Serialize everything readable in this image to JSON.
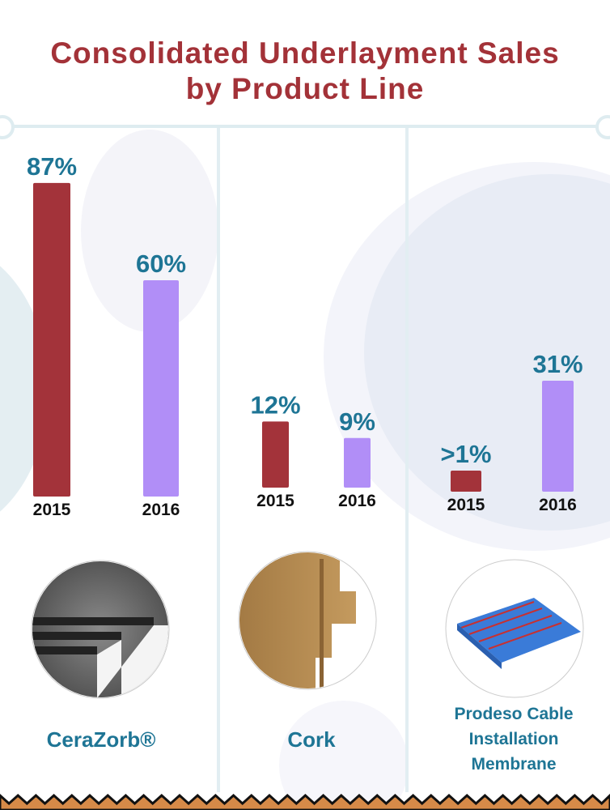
{
  "title_line1": "Consolidated Underlayment Sales",
  "title_line2": "by Product Line",
  "colors": {
    "y2015": "#a3333a",
    "y2016": "#b18ef7",
    "label": "#1e7595",
    "title": "#a33238"
  },
  "chart_data": {
    "type": "bar",
    "title": "Consolidated Underlayment Sales by Product Line",
    "categories": [
      "2015",
      "2016"
    ],
    "groups": [
      {
        "name": "CeraZorb®",
        "labels": [
          "87%",
          "60%"
        ],
        "values": [
          87,
          60
        ]
      },
      {
        "name": "Cork",
        "labels": [
          "12%",
          "9%"
        ],
        "values": [
          12,
          9
        ]
      },
      {
        "name": "Prodeso Cable Installation Membrane",
        "labels": [
          ">1%",
          "31%"
        ],
        "values": [
          1,
          31
        ]
      }
    ],
    "unit": "%",
    "grid": false
  },
  "product_names": {
    "cerazorb": "CeraZorb®",
    "cork": "Cork",
    "prodeso_1": "Prodeso Cable",
    "prodeso_2": "Installation",
    "prodeso_3": "Membrane"
  }
}
